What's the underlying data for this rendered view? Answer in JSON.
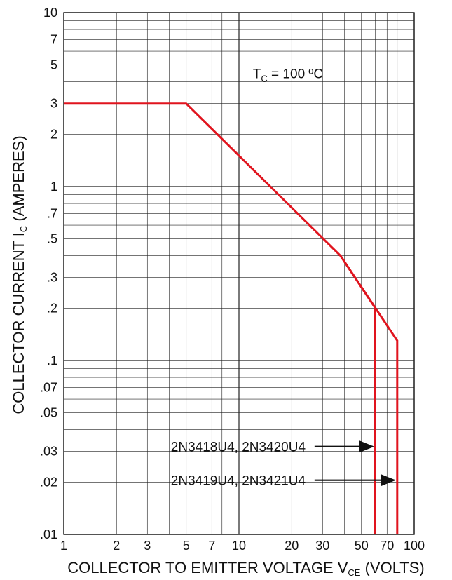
{
  "chart_data": {
    "type": "line",
    "xscale": "log",
    "yscale": "log",
    "xlim": [
      1,
      100
    ],
    "ylim": [
      0.01,
      10
    ],
    "grid": true,
    "colors": {
      "curve": "#e0141e",
      "grid": "#222222",
      "text": "#111111"
    },
    "xlabel": {
      "pre": "COLLECTOR TO EMITTER VOLTAGE V",
      "sub": "CE",
      "post": " (VOLTS)"
    },
    "ylabel": {
      "pre": "COLLECTOR CURRENT I",
      "sub": "C",
      "post": " (AMPERES)"
    },
    "x_ticks": [
      {
        "value": 1,
        "label": "1"
      },
      {
        "value": 2,
        "label": "2"
      },
      {
        "value": 3,
        "label": "3"
      },
      {
        "value": 5,
        "label": "5"
      },
      {
        "value": 7,
        "label": "7"
      },
      {
        "value": 10,
        "label": "10"
      },
      {
        "value": 20,
        "label": "20"
      },
      {
        "value": 30,
        "label": "30"
      },
      {
        "value": 50,
        "label": "50"
      },
      {
        "value": 70,
        "label": "70"
      },
      {
        "value": 100,
        "label": "100"
      }
    ],
    "y_ticks": [
      {
        "value": 10,
        "label": "10"
      },
      {
        "value": 7,
        "label": "7"
      },
      {
        "value": 5,
        "label": "5"
      },
      {
        "value": 3,
        "label": "3"
      },
      {
        "value": 2,
        "label": "2"
      },
      {
        "value": 1,
        "label": "1"
      },
      {
        "value": 0.7,
        "label": ".7"
      },
      {
        "value": 0.5,
        "label": ".5"
      },
      {
        "value": 0.3,
        "label": ".3"
      },
      {
        "value": 0.2,
        "label": ".2"
      },
      {
        "value": 0.1,
        "label": ".1"
      },
      {
        "value": 0.07,
        "label": ".07"
      },
      {
        "value": 0.05,
        "label": ".05"
      },
      {
        "value": 0.03,
        "label": ".03"
      },
      {
        "value": 0.02,
        "label": ".02"
      },
      {
        "value": 0.01,
        "label": ".01"
      }
    ],
    "annotation_temp": {
      "pre": "T",
      "sub": "C",
      "post": " = 100 ºC"
    },
    "series": [
      {
        "points": [
          [
            1,
            3
          ],
          [
            5,
            3
          ],
          [
            38,
            0.4
          ],
          [
            60,
            0.2
          ],
          [
            60,
            0.01
          ]
        ]
      },
      {
        "points": [
          [
            38,
            0.4
          ],
          [
            80,
            0.13
          ],
          [
            80,
            0.01
          ]
        ]
      }
    ],
    "arrow_labels": [
      {
        "text": "2N3418U4, 2N3420U4",
        "y": 0.032,
        "arrow_to_x": 58
      },
      {
        "text": "2N3419U4, 2N3421U4",
        "y": 0.0205,
        "arrow_to_x": 77
      }
    ]
  }
}
